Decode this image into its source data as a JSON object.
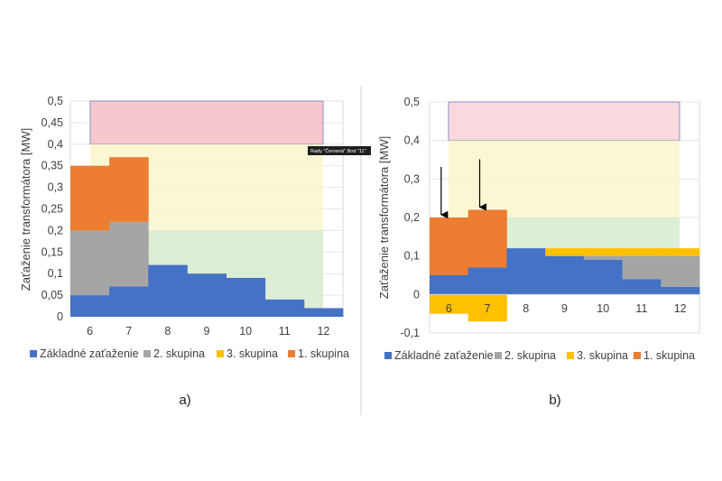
{
  "colors": {
    "base": "#4472C4",
    "group2": "#A5A5A5",
    "group3": "#FFC000",
    "group1": "#ED7D31",
    "zone_red": "#F4B9C1",
    "zone_yellow": "#FAF5C8",
    "zone_green": "#D5E8CC"
  },
  "chart_data": [
    {
      "type": "bar",
      "stacked": true,
      "panel_label": "a)",
      "categories": [
        "6",
        "7",
        "8",
        "9",
        "10",
        "11",
        "12"
      ],
      "ylabel": "Zaťaženie transformátora [MW]",
      "ylim": [
        0,
        0.5
      ],
      "yticks": [
        "0",
        "0,05",
        "0,1",
        "0,15",
        "0,2",
        "0,25",
        "0,3",
        "0,35",
        "0,4",
        "0,45",
        "0,5"
      ],
      "series": [
        {
          "name": "Základné zaťaženie",
          "values": [
            0.05,
            0.07,
            0.12,
            0.1,
            0.09,
            0.04,
            0.02
          ]
        },
        {
          "name": "2. skupina",
          "values": [
            0.15,
            0.15,
            0,
            0,
            0,
            0,
            0
          ]
        },
        {
          "name": "3. skupina",
          "values": [
            0,
            0,
            0,
            0,
            0,
            0,
            0
          ]
        },
        {
          "name": "1. skupina",
          "values": [
            0.15,
            0.15,
            0,
            0,
            0,
            0,
            0
          ]
        }
      ],
      "zones": [
        {
          "name": "red",
          "from": 0.4,
          "to": 0.5
        },
        {
          "name": "yellow",
          "from": 0.2,
          "to": 0.4
        },
        {
          "name": "green",
          "from": 0,
          "to": 0.2
        }
      ],
      "tooltip": "Rady \"Červená\" Bod \"11\"",
      "legend": [
        "Základné zaťaženie",
        "2. skupina",
        "3. skupina",
        "1. skupina"
      ]
    },
    {
      "type": "bar",
      "stacked": true,
      "panel_label": "b)",
      "categories": [
        "6",
        "7",
        "8",
        "9",
        "10",
        "11",
        "12"
      ],
      "ylabel": "Zaťaženie transformátora [MW]",
      "ylim": [
        -0.1,
        0.5
      ],
      "yticks": [
        "-0,1",
        "0",
        "0,1",
        "0,2",
        "0,3",
        "0,4",
        "0,5"
      ],
      "series": [
        {
          "name": "Základné zaťaženie",
          "values": [
            0.05,
            0.07,
            0.12,
            0.1,
            0.09,
            0.04,
            0.02
          ]
        },
        {
          "name": "2. skupina",
          "values": [
            0,
            0,
            0,
            0,
            0.01,
            0.06,
            0.08
          ]
        },
        {
          "name": "3. skupina",
          "values": [
            -0.05,
            -0.07,
            0,
            0.02,
            0.02,
            0.02,
            0.02
          ]
        },
        {
          "name": "1. skupina",
          "values": [
            0.15,
            0.15,
            0,
            0,
            0,
            0,
            0
          ]
        }
      ],
      "zones": [
        {
          "name": "red",
          "from": 0.4,
          "to": 0.5
        },
        {
          "name": "yellow",
          "from": 0.2,
          "to": 0.4
        },
        {
          "name": "green",
          "from": 0,
          "to": 0.2
        }
      ],
      "arrows": [
        "6",
        "7"
      ],
      "legend": [
        "Základné zaťaženie",
        "2. skupina",
        "3. skupina",
        "1. skupina"
      ]
    }
  ]
}
